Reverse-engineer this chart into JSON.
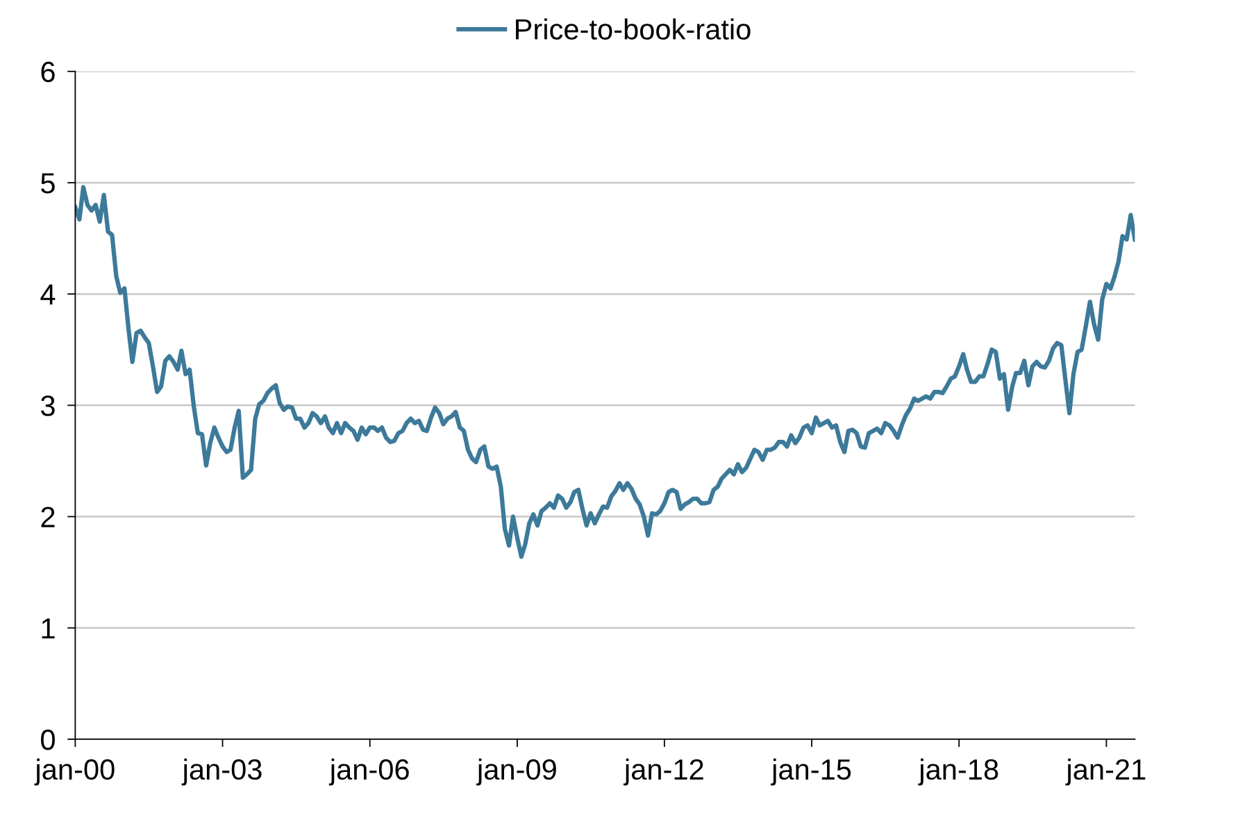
{
  "chart_data": {
    "type": "line",
    "x": [
      "2000-01",
      "2000-02",
      "2000-03",
      "2000-04",
      "2000-05",
      "2000-06",
      "2000-07",
      "2000-08",
      "2000-09",
      "2000-10",
      "2000-11",
      "2000-12",
      "2001-01",
      "2001-02",
      "2001-03",
      "2001-04",
      "2001-05",
      "2001-06",
      "2001-07",
      "2001-08",
      "2001-09",
      "2001-10",
      "2001-11",
      "2001-12",
      "2002-01",
      "2002-02",
      "2002-03",
      "2002-04",
      "2002-05",
      "2002-06",
      "2002-07",
      "2002-08",
      "2002-09",
      "2002-10",
      "2002-11",
      "2002-12",
      "2003-01",
      "2003-02",
      "2003-03",
      "2003-04",
      "2003-05",
      "2003-06",
      "2003-07",
      "2003-08",
      "2003-09",
      "2003-10",
      "2003-11",
      "2003-12",
      "2004-01",
      "2004-02",
      "2004-03",
      "2004-04",
      "2004-05",
      "2004-06",
      "2004-07",
      "2004-08",
      "2004-09",
      "2004-10",
      "2004-11",
      "2004-12",
      "2005-01",
      "2005-02",
      "2005-03",
      "2005-04",
      "2005-05",
      "2005-06",
      "2005-07",
      "2005-08",
      "2005-09",
      "2005-10",
      "2005-11",
      "2005-12",
      "2006-01",
      "2006-02",
      "2006-03",
      "2006-04",
      "2006-05",
      "2006-06",
      "2006-07",
      "2006-08",
      "2006-09",
      "2006-10",
      "2006-11",
      "2006-12",
      "2007-01",
      "2007-02",
      "2007-03",
      "2007-04",
      "2007-05",
      "2007-06",
      "2007-07",
      "2007-08",
      "2007-09",
      "2007-10",
      "2007-11",
      "2007-12",
      "2008-01",
      "2008-02",
      "2008-03",
      "2008-04",
      "2008-05",
      "2008-06",
      "2008-07",
      "2008-08",
      "2008-09",
      "2008-10",
      "2008-11",
      "2008-12",
      "2009-01",
      "2009-02",
      "2009-03",
      "2009-04",
      "2009-05",
      "2009-06",
      "2009-07",
      "2009-08",
      "2009-09",
      "2009-10",
      "2009-11",
      "2009-12",
      "2010-01",
      "2010-02",
      "2010-03",
      "2010-04",
      "2010-05",
      "2010-06",
      "2010-07",
      "2010-08",
      "2010-09",
      "2010-10",
      "2010-11",
      "2010-12",
      "2011-01",
      "2011-02",
      "2011-03",
      "2011-04",
      "2011-05",
      "2011-06",
      "2011-07",
      "2011-08",
      "2011-09",
      "2011-10",
      "2011-11",
      "2011-12",
      "2012-01",
      "2012-02",
      "2012-03",
      "2012-04",
      "2012-05",
      "2012-06",
      "2012-07",
      "2012-08",
      "2012-09",
      "2012-10",
      "2012-11",
      "2012-12",
      "2013-01",
      "2013-02",
      "2013-03",
      "2013-04",
      "2013-05",
      "2013-06",
      "2013-07",
      "2013-08",
      "2013-09",
      "2013-10",
      "2013-11",
      "2013-12",
      "2014-01",
      "2014-02",
      "2014-03",
      "2014-04",
      "2014-05",
      "2014-06",
      "2014-07",
      "2014-08",
      "2014-09",
      "2014-10",
      "2014-11",
      "2014-12",
      "2015-01",
      "2015-02",
      "2015-03",
      "2015-04",
      "2015-05",
      "2015-06",
      "2015-07",
      "2015-08",
      "2015-09",
      "2015-10",
      "2015-11",
      "2015-12",
      "2016-01",
      "2016-02",
      "2016-03",
      "2016-04",
      "2016-05",
      "2016-06",
      "2016-07",
      "2016-08",
      "2016-09",
      "2016-10",
      "2016-11",
      "2016-12",
      "2017-01",
      "2017-02",
      "2017-03",
      "2017-04",
      "2017-05",
      "2017-06",
      "2017-07",
      "2017-08",
      "2017-09",
      "2017-10",
      "2017-11",
      "2017-12",
      "2018-01",
      "2018-02",
      "2018-03",
      "2018-04",
      "2018-05",
      "2018-06",
      "2018-07",
      "2018-08",
      "2018-09",
      "2018-10",
      "2018-11",
      "2018-12",
      "2019-01",
      "2019-02",
      "2019-03",
      "2019-04",
      "2019-05",
      "2019-06",
      "2019-07",
      "2019-08",
      "2019-09",
      "2019-10",
      "2019-11",
      "2019-12",
      "2020-01",
      "2020-02",
      "2020-03",
      "2020-04",
      "2020-05",
      "2020-06",
      "2020-07",
      "2020-08",
      "2020-09",
      "2020-10",
      "2020-11",
      "2020-12",
      "2021-01",
      "2021-02",
      "2021-03",
      "2021-04",
      "2021-05",
      "2021-06",
      "2021-07",
      "2021-08"
    ],
    "series": [
      {
        "name": "Price-to-book-ratio",
        "color": "#3d7a9a",
        "values": [
          4.78,
          4.67,
          4.96,
          4.8,
          4.75,
          4.8,
          4.65,
          4.89,
          4.56,
          4.53,
          4.16,
          4.01,
          4.05,
          3.68,
          3.39,
          3.65,
          3.67,
          3.61,
          3.56,
          3.35,
          3.12,
          3.17,
          3.4,
          3.44,
          3.39,
          3.32,
          3.49,
          3.28,
          3.32,
          2.99,
          2.75,
          2.74,
          2.46,
          2.66,
          2.8,
          2.71,
          2.63,
          2.58,
          2.6,
          2.8,
          2.95,
          2.35,
          2.38,
          2.42,
          2.88,
          3.01,
          3.04,
          3.11,
          3.15,
          3.18,
          3.02,
          2.96,
          2.99,
          2.98,
          2.88,
          2.88,
          2.8,
          2.84,
          2.93,
          2.9,
          2.84,
          2.9,
          2.8,
          2.75,
          2.84,
          2.75,
          2.84,
          2.8,
          2.77,
          2.69,
          2.8,
          2.74,
          2.8,
          2.8,
          2.77,
          2.8,
          2.71,
          2.67,
          2.68,
          2.75,
          2.77,
          2.84,
          2.88,
          2.84,
          2.86,
          2.78,
          2.77,
          2.89,
          2.98,
          2.93,
          2.83,
          2.88,
          2.9,
          2.94,
          2.8,
          2.77,
          2.6,
          2.52,
          2.49,
          2.6,
          2.63,
          2.45,
          2.43,
          2.45,
          2.27,
          1.89,
          1.74,
          2.0,
          1.81,
          1.64,
          1.75,
          1.94,
          2.02,
          1.92,
          2.05,
          2.08,
          2.12,
          2.08,
          2.19,
          2.16,
          2.08,
          2.13,
          2.22,
          2.24,
          2.07,
          1.92,
          2.03,
          1.94,
          2.02,
          2.09,
          2.08,
          2.18,
          2.23,
          2.3,
          2.24,
          2.3,
          2.25,
          2.16,
          2.11,
          2.0,
          1.83,
          2.03,
          2.02,
          2.05,
          2.12,
          2.22,
          2.24,
          2.22,
          2.07,
          2.11,
          2.13,
          2.16,
          2.16,
          2.12,
          2.12,
          2.13,
          2.24,
          2.27,
          2.34,
          2.38,
          2.42,
          2.38,
          2.47,
          2.4,
          2.44,
          2.52,
          2.6,
          2.58,
          2.51,
          2.6,
          2.6,
          2.62,
          2.67,
          2.67,
          2.63,
          2.73,
          2.66,
          2.71,
          2.8,
          2.82,
          2.75,
          2.89,
          2.82,
          2.84,
          2.86,
          2.8,
          2.82,
          2.67,
          2.58,
          2.77,
          2.78,
          2.75,
          2.63,
          2.62,
          2.75,
          2.77,
          2.79,
          2.75,
          2.84,
          2.82,
          2.77,
          2.71,
          2.82,
          2.91,
          2.97,
          3.06,
          3.04,
          3.06,
          3.08,
          3.06,
          3.12,
          3.12,
          3.11,
          3.17,
          3.24,
          3.26,
          3.35,
          3.46,
          3.32,
          3.21,
          3.21,
          3.26,
          3.26,
          3.37,
          3.5,
          3.48,
          3.24,
          3.28,
          2.96,
          3.17,
          3.29,
          3.29,
          3.4,
          3.18,
          3.35,
          3.39,
          3.35,
          3.34,
          3.4,
          3.51,
          3.56,
          3.54,
          3.24,
          2.93,
          3.28,
          3.48,
          3.5,
          3.71,
          3.93,
          3.73,
          3.59,
          3.95,
          4.09,
          4.05,
          4.15,
          4.29,
          4.52,
          4.49,
          4.71,
          4.49
        ]
      }
    ],
    "xlim": [
      "2000-01",
      "2021-08"
    ],
    "xticks": [
      {
        "value": "2000-01",
        "label": "jan-00"
      },
      {
        "value": "2003-01",
        "label": "jan-03"
      },
      {
        "value": "2006-01",
        "label": "jan-06"
      },
      {
        "value": "2009-01",
        "label": "jan-09"
      },
      {
        "value": "2012-01",
        "label": "jan-12"
      },
      {
        "value": "2015-01",
        "label": "jan-15"
      },
      {
        "value": "2018-01",
        "label": "jan-18"
      },
      {
        "value": "2021-01",
        "label": "jan-21"
      }
    ],
    "ylim": [
      0,
      6
    ],
    "yticks": [
      0,
      1,
      2,
      3,
      4,
      5,
      6
    ],
    "grid": "y",
    "legend": "top",
    "line_style": "solid",
    "marker": "none"
  }
}
